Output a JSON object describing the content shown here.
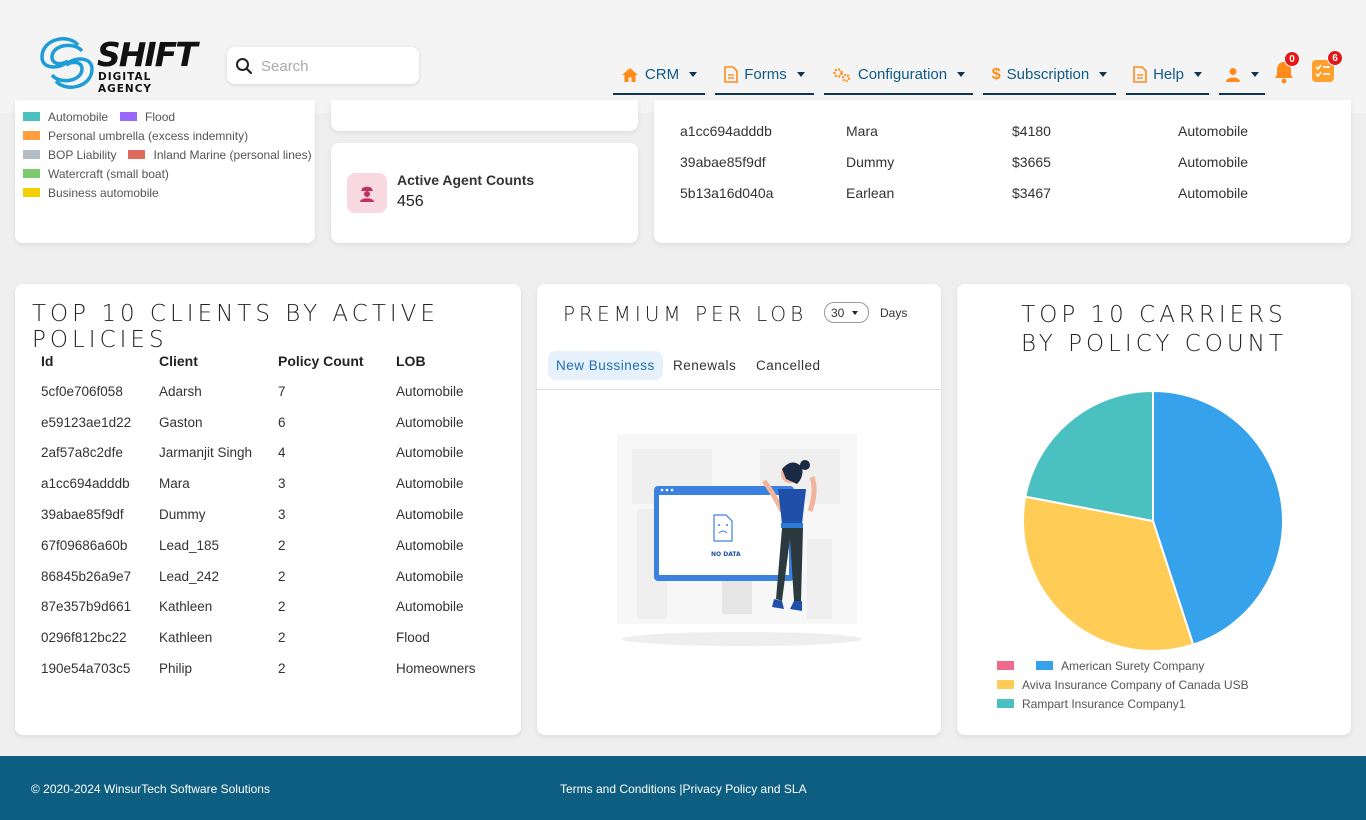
{
  "brand": {
    "name": "SHIFT",
    "tagline": "DIGITAL AGENCY"
  },
  "search": {
    "placeholder": "Search"
  },
  "nav": [
    {
      "label": "CRM",
      "icon": "home-icon"
    },
    {
      "label": "Forms",
      "icon": "document-icon"
    },
    {
      "label": "Configuration",
      "icon": "gears-icon"
    },
    {
      "label": "Subscription",
      "icon": "dollar-icon"
    },
    {
      "label": "Help",
      "icon": "document-icon"
    }
  ],
  "notifications": {
    "count": "0"
  },
  "tasks": {
    "count": "6"
  },
  "lob_legend": [
    {
      "label": "Automobile",
      "color": "#4bc0c0"
    },
    {
      "label": "Flood",
      "color": "#9966ff"
    },
    {
      "label": "Personal umbrella (excess indemnity)",
      "color": "#ff9f40"
    },
    {
      "label": "BOP Liability",
      "color": "#b2bcc4"
    },
    {
      "label": "Inland Marine (personal lines)",
      "color": "#e06b5c"
    },
    {
      "label": "Watercraft (small boat)",
      "color": "#7cc96e"
    },
    {
      "label": "Business automobile",
      "color": "#f5d000"
    }
  ],
  "agent_counts": {
    "title": "Active Agent Counts",
    "value": "456"
  },
  "top_policies_rows": [
    {
      "id": "a1cc694adddb",
      "client": "Mara",
      "amount": "$4180",
      "lob": "Automobile"
    },
    {
      "id": "39abae85f9df",
      "client": "Dummy",
      "amount": "$3665",
      "lob": "Automobile"
    },
    {
      "id": "5b13a16d040a",
      "client": "Earlean",
      "amount": "$3467",
      "lob": "Automobile"
    }
  ],
  "clients": {
    "title": "TOP 10 CLIENTS BY ACTIVE POLICIES",
    "headers": {
      "id": "Id",
      "client": "Client",
      "count": "Policy Count",
      "lob": "LOB"
    },
    "rows": [
      {
        "id": "5cf0e706f058",
        "client": "Adarsh",
        "count": "7",
        "lob": "Automobile"
      },
      {
        "id": "e59123ae1d22",
        "client": "Gaston",
        "count": "6",
        "lob": "Automobile"
      },
      {
        "id": "2af57a8c2dfe",
        "client": "Jarmanjit Singh",
        "count": "4",
        "lob": "Automobile"
      },
      {
        "id": "a1cc694adddb",
        "client": "Mara",
        "count": "3",
        "lob": "Automobile"
      },
      {
        "id": "39abae85f9df",
        "client": "Dummy",
        "count": "3",
        "lob": "Automobile"
      },
      {
        "id": "67f09686a60b",
        "client": "Lead_185",
        "count": "2",
        "lob": "Automobile"
      },
      {
        "id": "86845b26a9e7",
        "client": "Lead_242",
        "count": "2",
        "lob": "Automobile"
      },
      {
        "id": "87e357b9d661",
        "client": "Kathleen",
        "count": "2",
        "lob": "Automobile"
      },
      {
        "id": "0296f812bc22",
        "client": "Kathleen",
        "count": "2",
        "lob": "Flood"
      },
      {
        "id": "190e54a703c5",
        "client": "Philip",
        "count": "2",
        "lob": "Homeowners"
      }
    ]
  },
  "premium": {
    "title": "PREMIUM PER LOB",
    "days_value": "30",
    "days_label": "Days",
    "tabs": [
      "New Bussiness",
      "Renewals",
      "Cancelled"
    ],
    "active_tab": "New Bussiness",
    "empty_text": "NO DATA"
  },
  "carriers": {
    "title": "TOP 10 CARRIERS BY POLICY COUNT",
    "legend": [
      {
        "label": "",
        "color": "#f06a8b"
      },
      {
        "label": "American Surety Company",
        "color": "#36a2eb"
      },
      {
        "label": "Aviva Insurance Company of Canada USB",
        "color": "#ffcd56"
      },
      {
        "label": "Rampart Insurance Company1",
        "color": "#4bc0c0"
      }
    ]
  },
  "chart_data": {
    "type": "pie",
    "title": "TOP 10 CARRIERS BY POLICY COUNT",
    "categories": [
      "",
      "American Surety Company",
      "Aviva Insurance Company of Canada USB",
      "Rampart Insurance Company1"
    ],
    "values": [
      0,
      45,
      33,
      22
    ],
    "colors": [
      "#f06a8b",
      "#36a2eb",
      "#ffcd56",
      "#4bc0c0"
    ],
    "legend": "bottom"
  },
  "footer": {
    "copyright": "© 2020-2024 WinsurTech Software Solutions",
    "terms": "Terms and Conditions |",
    "privacy": "Privacy Policy and SLA"
  }
}
